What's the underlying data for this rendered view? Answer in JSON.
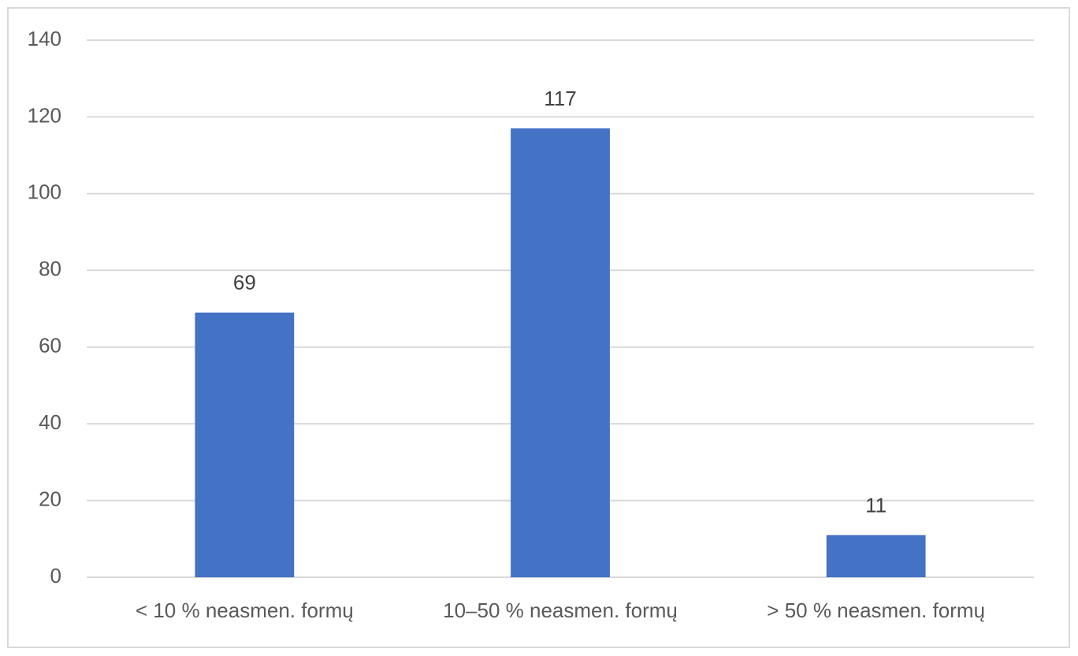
{
  "chart_data": {
    "type": "bar",
    "categories": [
      "< 10 % neasmen. formų",
      "10–50 % neasmen. formų",
      "> 50 % neasmen. formų"
    ],
    "values": [
      69,
      117,
      11
    ],
    "color": "#4472c4",
    "ylim": [
      0,
      140
    ],
    "yticks": [
      0,
      20,
      40,
      60,
      80,
      100,
      120,
      140
    ],
    "grid": true,
    "data_labels": true
  }
}
